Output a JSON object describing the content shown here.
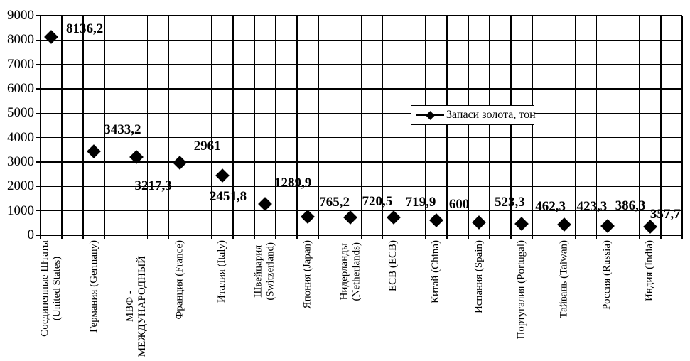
{
  "chart_data": {
    "type": "scatter",
    "title": "",
    "xlabel": "",
    "ylabel": "",
    "legend_label": "Запаси золота, тон",
    "legend_position": "middle-right",
    "marker": "black-diamond",
    "grid": true,
    "ylim": [
      0,
      9000
    ],
    "ytick_step": 1000,
    "yticks": [
      0,
      1000,
      2000,
      3000,
      4000,
      5000,
      6000,
      7000,
      8000,
      9000
    ],
    "categories": [
      "Соединенные Штаты\n(United States)",
      "Германия (Germany)",
      "МВФ -\nМЕЖДУНАРОДНЫЙ",
      "Франция (France)",
      "Италия (Italy)",
      "Швейцария\n(Switzerland)",
      "Япония (Japan)",
      "Нидерланды\n(Netherlands)",
      "ECB (ECB)",
      "Китай (China)",
      "Испания (Spain)",
      "Португалия (Portugal)",
      "Тайвань (Taiwan)",
      "Россия (Russia)",
      "Индия (India)"
    ],
    "series": [
      {
        "name": "Запаси золота, тон",
        "values": [
          8136.2,
          3433.2,
          3217.3,
          2961,
          2451.8,
          1289.9,
          765.2,
          720.5,
          719.9,
          600,
          523.3,
          462.3,
          423.3,
          386.3,
          357.7
        ]
      }
    ],
    "value_labels": [
      "8136,2",
      "3433,2",
      "3217,3",
      "2961",
      "2451,8",
      "1289,9",
      "765,2",
      "720,5",
      "719,9",
      "600",
      "523,3",
      "462,3",
      "423,3",
      "386,3",
      "357,7"
    ],
    "colors": {
      "marker": "#000000",
      "gridline": "#000000",
      "background": "#ffffff",
      "legend_border": "#000000",
      "text": "#000000"
    }
  }
}
